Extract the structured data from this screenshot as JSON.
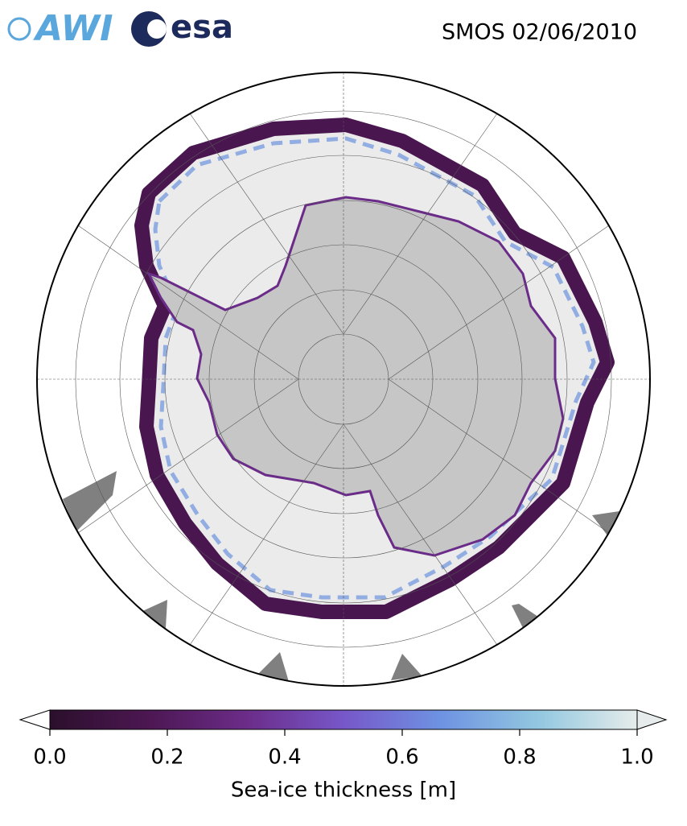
{
  "header": {
    "logos": [
      "AWI",
      "esa"
    ],
    "title": "SMOS 02/06/2010"
  },
  "colorbar": {
    "label": "Sea-ice thickness [m]",
    "lim": [
      0,
      1
    ],
    "ticks": [
      {
        "value": 0,
        "label": "0.0"
      },
      0.2,
      0.4,
      0.6,
      0.8,
      {
        "value": 1,
        "label": "1.0"
      }
    ],
    "colors": [
      "#2b0f2c",
      "#4c1752",
      "#6b2c88",
      "#7757c9",
      "#6e93e2",
      "#93c8e0",
      "#e6eceb"
    ]
  }
}
